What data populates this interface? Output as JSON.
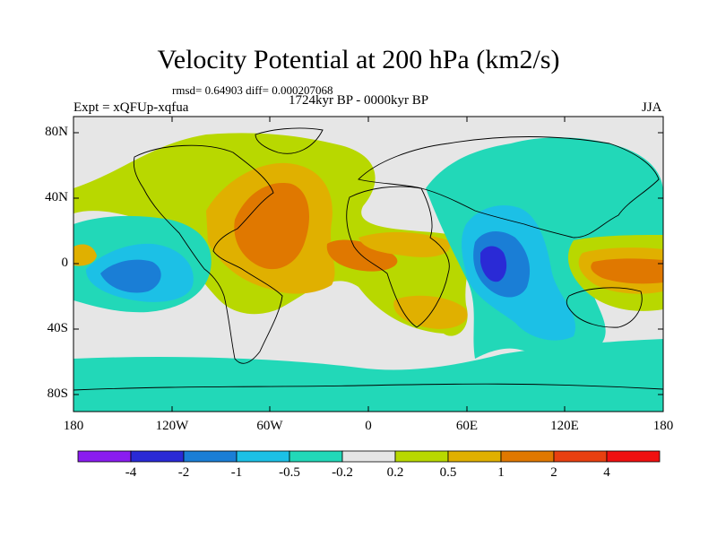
{
  "title": "Velocity Potential at 200 hPa (km2/s)",
  "stats": "rmsd= 0.64903 diff= 0.000207068",
  "period": "1724kyr BP - 0000kyr BP",
  "experiment": "Expt = xQFUp-xqfua",
  "season": "JJA",
  "axes": {
    "lat_ticks": [
      "80N",
      "40N",
      "0",
      "40S",
      "80S"
    ],
    "lon_ticks": [
      "180",
      "120W",
      "60W",
      "0",
      "60E",
      "120E",
      "180"
    ]
  },
  "colorbar": {
    "labels": [
      "-4",
      "-2",
      "-1",
      "-0.5",
      "-0.2",
      "0.2",
      "0.5",
      "1",
      "2",
      "4"
    ],
    "colors": [
      "#8a1cf0",
      "#2a2ad6",
      "#1a7ed6",
      "#1cc0e6",
      "#22d8b8",
      "#e6e6e6",
      "#b8d800",
      "#e0b000",
      "#e07800",
      "#e84010",
      "#f01010"
    ]
  },
  "map_colors": {
    "background": "#e6e6e6",
    "land_outline": "#000000"
  }
}
